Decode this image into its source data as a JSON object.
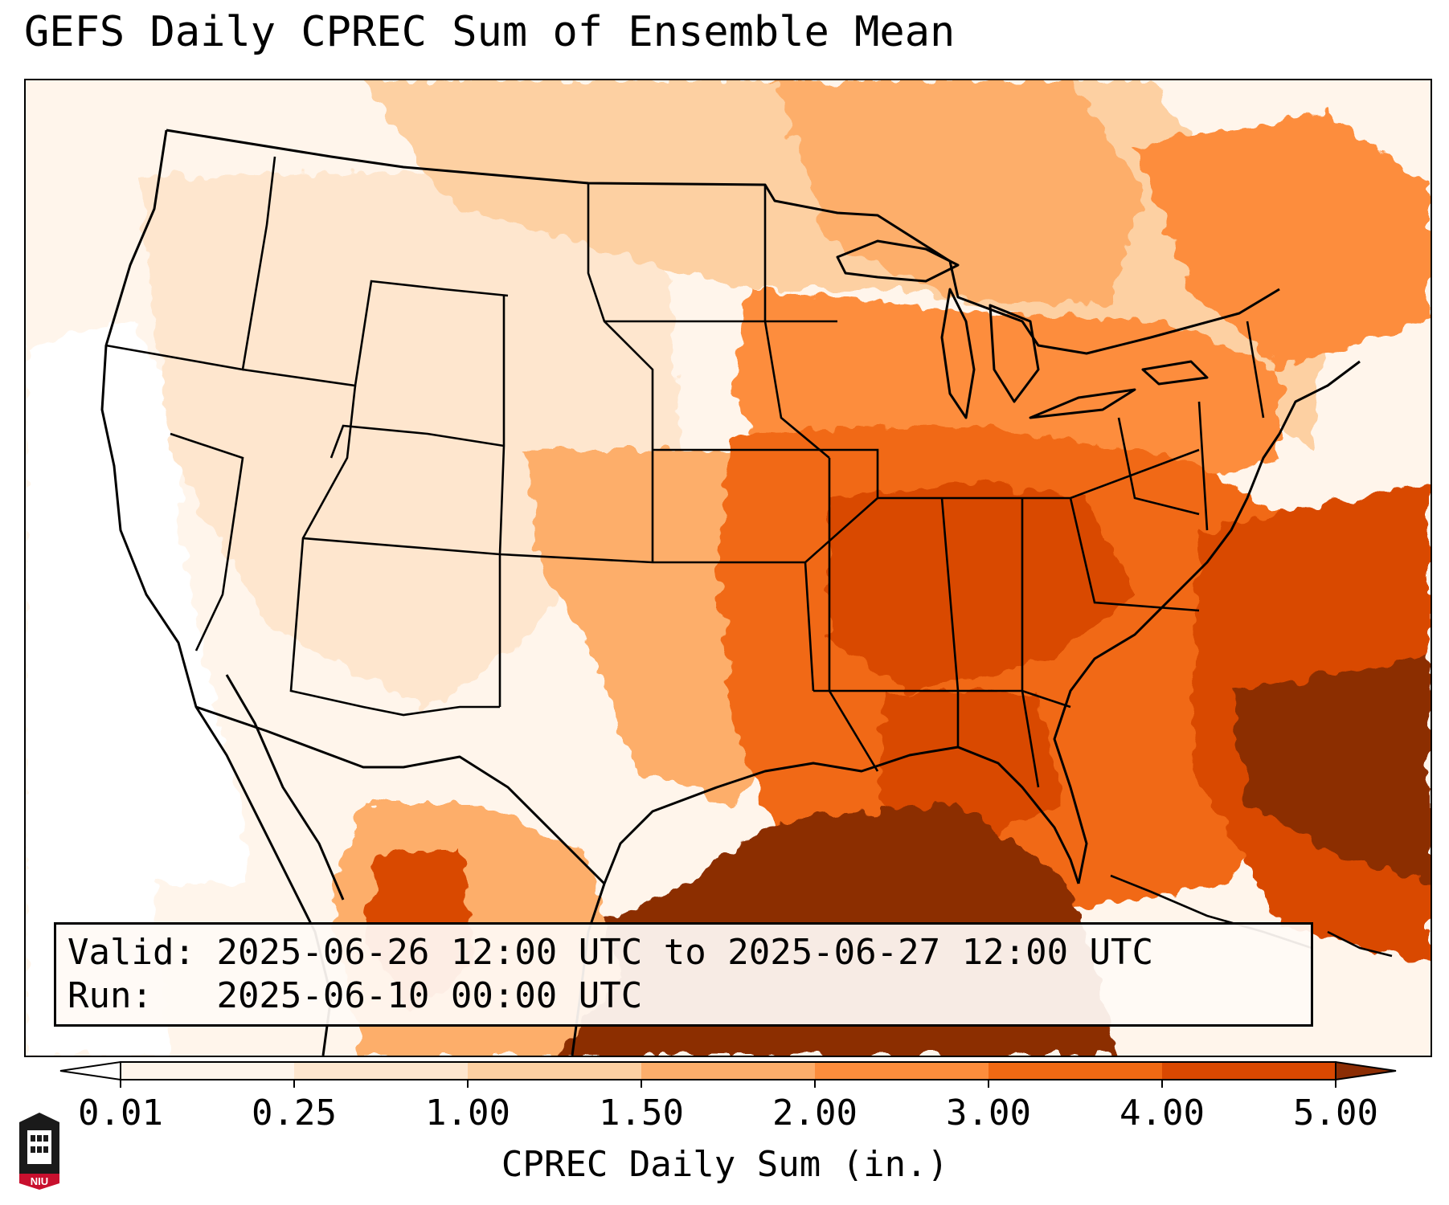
{
  "title": "GEFS Daily CPREC Sum of Ensemble Mean",
  "info": {
    "valid_label": "Valid:",
    "valid_value": "2025-06-26 12:00 UTC to 2025-06-27 12:00 UTC",
    "run_label": "Run:",
    "run_value": "2025-06-10 00:00 UTC"
  },
  "colorbar": {
    "label": "CPREC Daily Sum (in.)",
    "levels": [
      0.01,
      0.25,
      1.0,
      1.5,
      2.0,
      3.0,
      4.0,
      5.0
    ],
    "tick_labels": [
      "0.01",
      "0.25",
      "1.00",
      "1.50",
      "2.00",
      "3.00",
      "4.00",
      "5.00"
    ],
    "colors": [
      "#fff5eb",
      "#fee6ce",
      "#fdd0a2",
      "#fdae6b",
      "#fd8d3c",
      "#f16913",
      "#d94801",
      "#8c2d04"
    ],
    "under_color": "#ffffff",
    "over_color": "#8c2d04",
    "extend": "both"
  },
  "logo": {
    "text": "NIU",
    "icon": "university-tower-logo-icon",
    "colors": [
      "#1a1a1a",
      "#c8102e"
    ]
  }
}
